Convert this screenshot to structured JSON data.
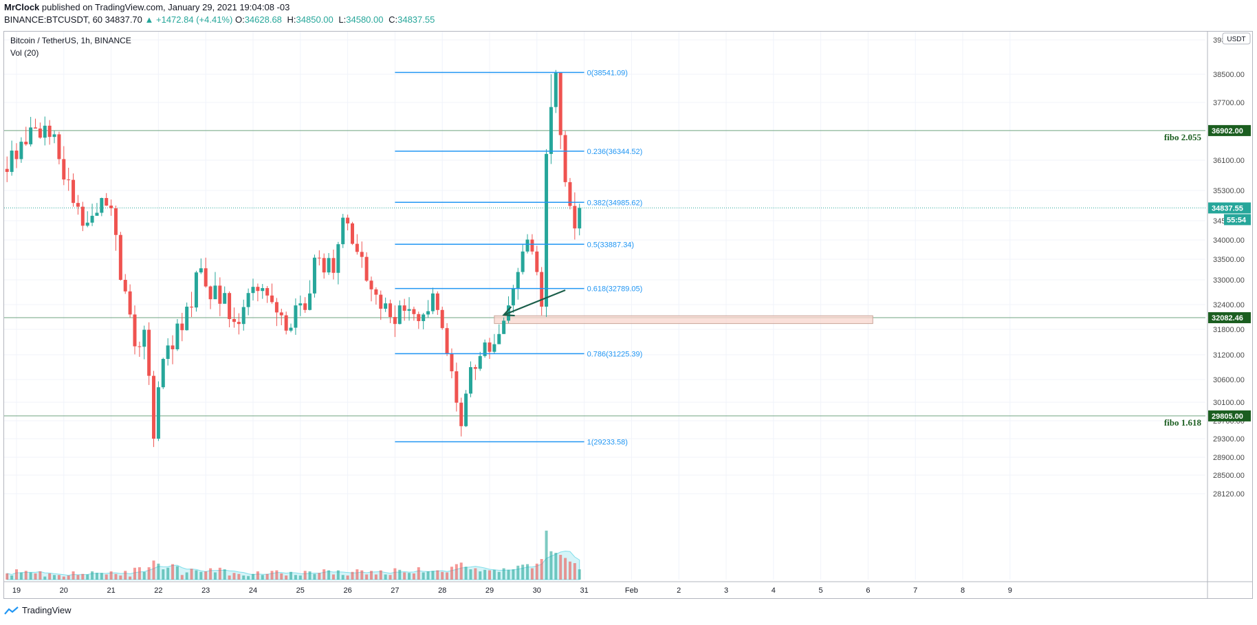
{
  "header": {
    "author": "MrClock",
    "published_text": "published on TradingView.com, January 29, 2021 19:04:08 -03",
    "symbol": "BINANCE:BTCUSDT, 60",
    "last": "34837.70",
    "change": "▲ +1472.84 (+4.41%)",
    "ohlc": [
      {
        "k": "O:",
        "v": "34628.68"
      },
      {
        "k": "H:",
        "v": "34850.00"
      },
      {
        "k": "L:",
        "v": "34580.00"
      },
      {
        "k": "C:",
        "v": "34837.55"
      }
    ]
  },
  "legend": {
    "title": "Bitcoin / TetherUS, 1h, BINANCE",
    "volume": "Vol (20)"
  },
  "footer": {
    "brand": "TradingView"
  },
  "colors": {
    "up": "#26a69a",
    "down": "#ef5350",
    "fib": "#2196f3",
    "support": "#6fa37f",
    "label_green": "#1b5e20",
    "teal": "#26a69a",
    "zone": "#f8d5ce"
  },
  "chart_data": {
    "type": "candlestick",
    "currency": "USDT",
    "y_ticks": [
      "28120.00",
      "28500.00",
      "28900.00",
      "29300.00",
      "29700.00",
      "30100.00",
      "30600.00",
      "31200.00",
      "31800.00",
      "32400.00",
      "33000.00",
      "33500.00",
      "34000.00",
      "34500.00",
      "35300.00",
      "36100.00",
      "36900.00",
      "37700.00",
      "38500.00",
      "39300.00"
    ],
    "x_ticks": [
      {
        "label": "19",
        "day": 19
      },
      {
        "label": "20",
        "day": 20
      },
      {
        "label": "21",
        "day": 21
      },
      {
        "label": "22",
        "day": 22
      },
      {
        "label": "23",
        "day": 23
      },
      {
        "label": "24",
        "day": 24
      },
      {
        "label": "25",
        "day": 25
      },
      {
        "label": "26",
        "day": 26
      },
      {
        "label": "27",
        "day": 27
      },
      {
        "label": "28",
        "day": 28
      },
      {
        "label": "29",
        "day": 29
      },
      {
        "label": "30",
        "day": 30
      },
      {
        "label": "31",
        "day": 31
      },
      {
        "label": "Feb",
        "day": 32
      },
      {
        "label": "2",
        "day": 33
      },
      {
        "label": "3",
        "day": 34
      },
      {
        "label": "4",
        "day": 35
      },
      {
        "label": "5",
        "day": 36
      },
      {
        "label": "6",
        "day": 37
      },
      {
        "label": "7",
        "day": 38
      },
      {
        "label": "8",
        "day": 39
      },
      {
        "label": "9",
        "day": 40
      }
    ],
    "fibonacci": {
      "start_day": 27.0,
      "end_day": 31.0,
      "levels": [
        {
          "text": "0(38541.09)",
          "value": 38541.09
        },
        {
          "text": "0.236(36344.52)",
          "value": 36344.52
        },
        {
          "text": "0.382(34985.62)",
          "value": 34985.62
        },
        {
          "text": "0.5(33887.34)",
          "value": 33887.34
        },
        {
          "text": "0.618(32789.05)",
          "value": 32789.05
        },
        {
          "text": "0.786(31225.39)",
          "value": 31225.39
        },
        {
          "text": "1(29233.58)",
          "value": 29233.58
        }
      ]
    },
    "horizontal_lines": [
      {
        "value": 36902.0,
        "label": "36902.00",
        "note": "fibo 2.055",
        "style": "green"
      },
      {
        "value": 32082.46,
        "label": "32082.46",
        "style": "green"
      },
      {
        "value": 29805.0,
        "label": "29805.00",
        "note": "fibo 1.618",
        "style": "green"
      },
      {
        "value": 34837.55,
        "label": "34837.55",
        "sub": "55:54",
        "style": "teal"
      }
    ],
    "zone": {
      "day_start": 29.1,
      "day_end": 37.1,
      "low": 31940,
      "high": 32130
    },
    "arrow": {
      "from_day": 30.6,
      "from_value": 32750,
      "to_day": 29.3,
      "to_value": 32150
    },
    "candles": [
      [
        18.8,
        35870,
        35790,
        36200,
        35520,
        12
      ],
      [
        18.9,
        35790,
        36360,
        36630,
        35690,
        8
      ],
      [
        19.0,
        36360,
        36130,
        36560,
        35890,
        20
      ],
      [
        19.1,
        36130,
        36600,
        36720,
        36030,
        14
      ],
      [
        19.2,
        36600,
        36530,
        37010,
        36490,
        17
      ],
      [
        19.3,
        36530,
        36990,
        37290,
        36470,
        14
      ],
      [
        19.4,
        36990,
        36960,
        37240,
        36960,
        12
      ],
      [
        19.5,
        36960,
        36710,
        37130,
        36680,
        16
      ],
      [
        19.6,
        36710,
        37040,
        37300,
        36500,
        6
      ],
      [
        19.7,
        37040,
        36730,
        37200,
        36520,
        12
      ],
      [
        19.8,
        36730,
        36800,
        36900,
        36560,
        9
      ],
      [
        19.9,
        36800,
        36130,
        36870,
        35990,
        9
      ],
      [
        20.0,
        36130,
        35590,
        36480,
        35440,
        6
      ],
      [
        20.1,
        35590,
        35580,
        35900,
        35290,
        8
      ],
      [
        20.2,
        35580,
        34970,
        35750,
        34870,
        16
      ],
      [
        20.3,
        34970,
        34870,
        35180,
        34660,
        9
      ],
      [
        20.4,
        34870,
        34370,
        35000,
        34230,
        11
      ],
      [
        20.5,
        34370,
        34450,
        34750,
        34330,
        10
      ],
      [
        20.6,
        34450,
        34630,
        34950,
        34360,
        16
      ],
      [
        20.7,
        34630,
        34710,
        34970,
        34680,
        13
      ],
      [
        20.8,
        34710,
        35100,
        35110,
        34620,
        13
      ],
      [
        20.9,
        35100,
        34900,
        35230,
        34890,
        10
      ],
      [
        21.0,
        34900,
        34830,
        35060,
        34630,
        16
      ],
      [
        21.1,
        34830,
        34130,
        34900,
        33720,
        11
      ],
      [
        21.2,
        34130,
        33000,
        34210,
        32980,
        8
      ],
      [
        21.3,
        33000,
        32720,
        33140,
        32660,
        17
      ],
      [
        21.4,
        32720,
        32160,
        32890,
        32090,
        6
      ],
      [
        21.5,
        32160,
        31400,
        32380,
        31210,
        23
      ],
      [
        21.6,
        31400,
        31390,
        31510,
        31150,
        24
      ],
      [
        21.7,
        31390,
        31790,
        31890,
        31090,
        15
      ],
      [
        21.8,
        31790,
        30690,
        31970,
        30480,
        24
      ],
      [
        21.9,
        30690,
        29300,
        30810,
        29120,
        37
      ],
      [
        22.0,
        29300,
        30430,
        30560,
        29250,
        31
      ],
      [
        22.1,
        30430,
        31100,
        31130,
        30390,
        20
      ],
      [
        22.2,
        31100,
        31420,
        31590,
        30940,
        23
      ],
      [
        22.3,
        31420,
        31330,
        31660,
        30970,
        30
      ],
      [
        22.4,
        31330,
        31940,
        32050,
        31290,
        26
      ],
      [
        22.5,
        31940,
        31780,
        32200,
        31520,
        9
      ],
      [
        22.6,
        31780,
        32350,
        32450,
        31770,
        14
      ],
      [
        22.7,
        32350,
        32330,
        32710,
        32100,
        21
      ],
      [
        22.8,
        32330,
        33180,
        33220,
        32230,
        18
      ],
      [
        22.9,
        33180,
        33280,
        33520,
        33140,
        15
      ],
      [
        23.0,
        33280,
        32840,
        33540,
        32810,
        16
      ],
      [
        23.1,
        32840,
        32530,
        32860,
        32290,
        22
      ],
      [
        23.2,
        32530,
        32860,
        33190,
        32710,
        14
      ],
      [
        23.3,
        32860,
        32420,
        33060,
        32120,
        23
      ],
      [
        23.4,
        32420,
        32680,
        32840,
        32510,
        20
      ],
      [
        23.5,
        32680,
        32050,
        32720,
        31850,
        8
      ],
      [
        23.6,
        32050,
        31980,
        32330,
        31840,
        13
      ],
      [
        23.7,
        31980,
        31930,
        32190,
        31680,
        11
      ],
      [
        23.8,
        31930,
        32340,
        32520,
        31770,
        8
      ],
      [
        23.9,
        32340,
        32680,
        32790,
        32140,
        7
      ],
      [
        24.0,
        32680,
        32830,
        33030,
        32500,
        11
      ],
      [
        24.1,
        32830,
        32730,
        32910,
        32480,
        16
      ],
      [
        24.2,
        32730,
        32800,
        32900,
        32540,
        9
      ],
      [
        24.3,
        32800,
        32620,
        32850,
        32440,
        11
      ],
      [
        24.4,
        32620,
        32460,
        32910,
        32420,
        17
      ],
      [
        24.5,
        32460,
        32210,
        32560,
        31880,
        18
      ],
      [
        24.6,
        32210,
        32140,
        32300,
        31900,
        12
      ],
      [
        24.7,
        32140,
        31770,
        32230,
        31680,
        8
      ],
      [
        24.8,
        31770,
        31840,
        31940,
        31730,
        15
      ],
      [
        24.9,
        31840,
        32380,
        32550,
        31670,
        9
      ],
      [
        25.0,
        32380,
        32430,
        32620,
        32120,
        8
      ],
      [
        25.1,
        32430,
        32270,
        32580,
        32200,
        17
      ],
      [
        25.2,
        32270,
        32670,
        32990,
        32260,
        16
      ],
      [
        25.3,
        32670,
        33540,
        33620,
        32570,
        11
      ],
      [
        25.4,
        33540,
        33530,
        33730,
        33350,
        13
      ],
      [
        25.5,
        33530,
        33180,
        33650,
        33030,
        20
      ],
      [
        25.6,
        33180,
        33530,
        33660,
        33120,
        18
      ],
      [
        25.7,
        33530,
        33170,
        33750,
        33010,
        10
      ],
      [
        25.8,
        33170,
        33890,
        33950,
        32890,
        18
      ],
      [
        25.9,
        33890,
        34580,
        34680,
        33790,
        9
      ],
      [
        26.0,
        34580,
        34430,
        34660,
        34250,
        8
      ],
      [
        26.1,
        34430,
        33900,
        34470,
        33870,
        15
      ],
      [
        26.2,
        33900,
        33690,
        34150,
        33620,
        20
      ],
      [
        26.3,
        33690,
        33560,
        33960,
        33290,
        18
      ],
      [
        26.4,
        33560,
        32980,
        33680,
        32950,
        10
      ],
      [
        26.5,
        32980,
        32770,
        33080,
        32480,
        17
      ],
      [
        26.6,
        32770,
        32640,
        32820,
        32400,
        10
      ],
      [
        26.7,
        32640,
        32300,
        32740,
        32030,
        18
      ],
      [
        26.8,
        32300,
        32430,
        32570,
        32220,
        10
      ],
      [
        26.9,
        32430,
        32100,
        32520,
        31950,
        9
      ],
      [
        27.0,
        32100,
        31930,
        32380,
        31620,
        22
      ],
      [
        27.1,
        31930,
        32380,
        32500,
        31920,
        19
      ],
      [
        27.2,
        32380,
        32250,
        32540,
        32010,
        14
      ],
      [
        27.3,
        32250,
        32290,
        32580,
        32010,
        13
      ],
      [
        27.4,
        32290,
        32170,
        32350,
        32010,
        12
      ],
      [
        27.5,
        32170,
        32000,
        32230,
        31810,
        24
      ],
      [
        27.6,
        32000,
        32160,
        32200,
        31800,
        14
      ],
      [
        27.7,
        32160,
        32240,
        32510,
        32080,
        16
      ],
      [
        27.8,
        32240,
        32670,
        32810,
        32170,
        17
      ],
      [
        27.9,
        32670,
        32270,
        32720,
        32150,
        18
      ],
      [
        28.0,
        32270,
        31830,
        32350,
        31790,
        15
      ],
      [
        28.1,
        31830,
        31230,
        31950,
        31170,
        14
      ],
      [
        28.2,
        31230,
        30800,
        31350,
        30630,
        25
      ],
      [
        28.3,
        30800,
        30090,
        31010,
        29900,
        30
      ],
      [
        28.4,
        30090,
        29580,
        30200,
        29350,
        33
      ],
      [
        28.5,
        29580,
        30290,
        30370,
        29560,
        25
      ],
      [
        28.6,
        30290,
        30900,
        31040,
        30210,
        20
      ],
      [
        28.7,
        30900,
        30860,
        30960,
        30590,
        22
      ],
      [
        28.8,
        30860,
        31170,
        31270,
        30810,
        16
      ],
      [
        28.9,
        31170,
        31490,
        31560,
        31130,
        19
      ],
      [
        29.0,
        31490,
        31270,
        31600,
        31100,
        18
      ],
      [
        29.1,
        31270,
        31450,
        31690,
        31230,
        19
      ],
      [
        29.2,
        31450,
        31690,
        31920,
        31520,
        15
      ],
      [
        29.3,
        31690,
        32010,
        32090,
        31690,
        22
      ],
      [
        29.4,
        32010,
        32380,
        32600,
        31950,
        19
      ],
      [
        29.5,
        32380,
        32800,
        32880,
        32200,
        20
      ],
      [
        29.6,
        32800,
        33190,
        33290,
        32520,
        27
      ],
      [
        29.7,
        33190,
        33700,
        33900,
        33130,
        29
      ],
      [
        29.8,
        33700,
        34010,
        34150,
        33650,
        30
      ],
      [
        29.9,
        34010,
        33700,
        34150,
        33620,
        22
      ],
      [
        30.0,
        33700,
        33190,
        33850,
        33110,
        31
      ],
      [
        30.1,
        33190,
        32350,
        33310,
        32140,
        40
      ],
      [
        30.2,
        32350,
        36270,
        36400,
        32100,
        95
      ],
      [
        30.3,
        36270,
        37570,
        38500,
        36000,
        55
      ],
      [
        30.4,
        37570,
        38540,
        38600,
        37400,
        52
      ],
      [
        30.5,
        38540,
        36780,
        38540,
        36400,
        48
      ],
      [
        30.6,
        36780,
        35520,
        36890,
        35400,
        42
      ],
      [
        30.7,
        35520,
        34890,
        35630,
        34800,
        35
      ],
      [
        30.8,
        34890,
        34300,
        35250,
        34010,
        32
      ],
      [
        30.9,
        34300,
        34837,
        34950,
        34120,
        20
      ]
    ],
    "volume_axis_max": 100
  }
}
